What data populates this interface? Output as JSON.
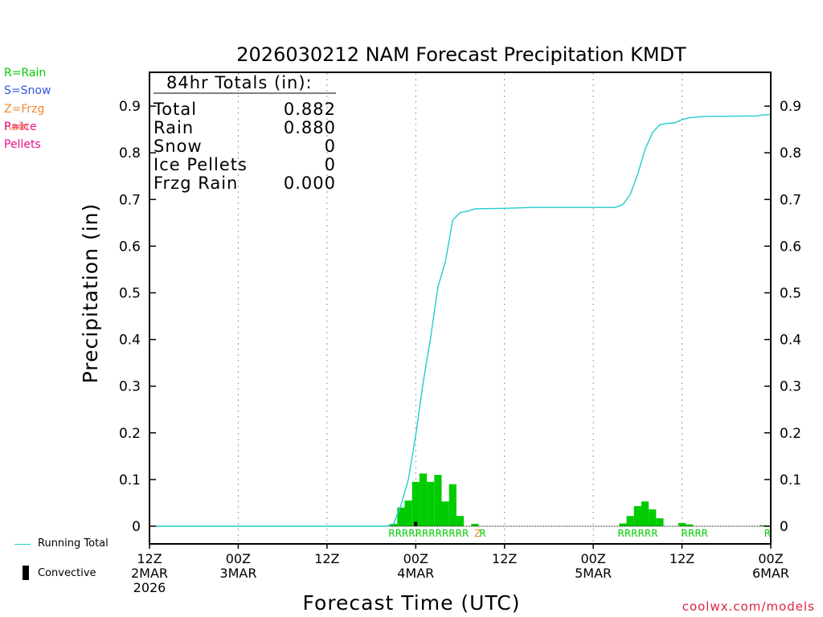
{
  "colors": {
    "rain": "#00cc00",
    "snow": "#3355dd",
    "frzg_rain": "#ee8833",
    "ice_pellets": "#ee1188",
    "running_total": "#22cccc",
    "convective": "#000000",
    "credit": "#dd2244",
    "grid": "#999999"
  },
  "type_legend": [
    {
      "label": "R=Rain",
      "color": "#00cc00"
    },
    {
      "label": "S=Snow",
      "color": "#3355dd"
    },
    {
      "label": "Z=Frzg Rain",
      "color": "#ee8833"
    },
    {
      "label": "P=Ice Pellets",
      "color": "#ee1188"
    }
  ],
  "bottom_legend": {
    "running_total": "Running Total",
    "convective": "Convective"
  },
  "credit": "coolwx.com/models",
  "chart_data": {
    "type": "bar",
    "title": "2026030212 NAM Forecast Precipitation KMDT",
    "xlabel": "Forecast Time (UTC)",
    "ylabel": "Precipitation (in)",
    "ylim": [
      0,
      0.98
    ],
    "xlim_hours": [
      0,
      84
    ],
    "bar_width_hours": 1,
    "y_ticks": [
      "0",
      "0.1",
      "0.2",
      "0.3",
      "0.4",
      "0.5",
      "0.6",
      "0.7",
      "0.8",
      "0.9"
    ],
    "y_tick_values": [
      0,
      0.1,
      0.2,
      0.3,
      0.4,
      0.5,
      0.6,
      0.7,
      0.8,
      0.9
    ],
    "x_ticks": [
      {
        "hour": 0,
        "lines": [
          "12Z",
          "2MAR",
          "2026"
        ]
      },
      {
        "hour": 12,
        "lines": [
          "00Z",
          "3MAR"
        ]
      },
      {
        "hour": 24,
        "lines": [
          "12Z"
        ]
      },
      {
        "hour": 36,
        "lines": [
          "00Z",
          "4MAR"
        ]
      },
      {
        "hour": 48,
        "lines": [
          "12Z"
        ]
      },
      {
        "hour": 60,
        "lines": [
          "00Z",
          "5MAR"
        ]
      },
      {
        "hour": 72,
        "lines": [
          "12Z"
        ]
      },
      {
        "hour": 84,
        "lines": [
          "00Z",
          "6MAR"
        ]
      }
    ],
    "grid_hours": [
      12,
      24,
      36,
      48,
      60,
      72
    ],
    "totals_box": {
      "header": "84hr Totals (in):",
      "rows": [
        {
          "label": "Total",
          "value": "0.882"
        },
        {
          "label": "Rain",
          "value": "0.880"
        },
        {
          "label": "Snow",
          "value": "0"
        },
        {
          "label": "Ice Pellets",
          "value": "0"
        },
        {
          "label": "Frzg Rain",
          "value": "0.000"
        }
      ]
    },
    "series": [
      {
        "name": "Hourly Precipitation",
        "kind": "bar",
        "points": [
          {
            "hour": 33,
            "value": 0.005
          },
          {
            "hour": 34,
            "value": 0.04
          },
          {
            "hour": 35,
            "value": 0.055
          },
          {
            "hour": 36,
            "value": 0.095
          },
          {
            "hour": 37,
            "value": 0.113
          },
          {
            "hour": 38,
            "value": 0.095
          },
          {
            "hour": 39,
            "value": 0.11
          },
          {
            "hour": 40,
            "value": 0.053
          },
          {
            "hour": 41,
            "value": 0.09
          },
          {
            "hour": 42,
            "value": 0.022
          },
          {
            "hour": 44,
            "value": 0.005
          },
          {
            "hour": 64,
            "value": 0.006
          },
          {
            "hour": 65,
            "value": 0.022
          },
          {
            "hour": 66,
            "value": 0.043
          },
          {
            "hour": 67,
            "value": 0.053
          },
          {
            "hour": 68,
            "value": 0.036
          },
          {
            "hour": 69,
            "value": 0.017
          },
          {
            "hour": 72,
            "value": 0.007
          },
          {
            "hour": 73,
            "value": 0.004
          },
          {
            "hour": 83,
            "value": 0.002
          }
        ]
      },
      {
        "name": "Convective",
        "kind": "bar",
        "points": [
          {
            "hour": 36,
            "value": 0.008
          }
        ]
      },
      {
        "name": "Running Total",
        "kind": "line",
        "points": [
          {
            "hour": 0,
            "value": 0
          },
          {
            "hour": 32,
            "value": 0
          },
          {
            "hour": 33,
            "value": 0.005
          },
          {
            "hour": 34,
            "value": 0.045
          },
          {
            "hour": 35,
            "value": 0.1
          },
          {
            "hour": 36,
            "value": 0.195
          },
          {
            "hour": 37,
            "value": 0.308
          },
          {
            "hour": 38,
            "value": 0.403
          },
          {
            "hour": 39,
            "value": 0.513
          },
          {
            "hour": 40,
            "value": 0.566
          },
          {
            "hour": 41,
            "value": 0.656
          },
          {
            "hour": 42,
            "value": 0.672
          },
          {
            "hour": 43,
            "value": 0.675
          },
          {
            "hour": 44,
            "value": 0.68
          },
          {
            "hour": 48,
            "value": 0.681
          },
          {
            "hour": 52,
            "value": 0.683
          },
          {
            "hour": 63,
            "value": 0.683
          },
          {
            "hour": 64,
            "value": 0.689
          },
          {
            "hour": 65,
            "value": 0.711
          },
          {
            "hour": 66,
            "value": 0.754
          },
          {
            "hour": 67,
            "value": 0.807
          },
          {
            "hour": 68,
            "value": 0.843
          },
          {
            "hour": 69,
            "value": 0.86
          },
          {
            "hour": 70,
            "value": 0.863
          },
          {
            "hour": 71,
            "value": 0.864
          },
          {
            "hour": 72,
            "value": 0.871
          },
          {
            "hour": 73,
            "value": 0.875
          },
          {
            "hour": 75,
            "value": 0.878
          },
          {
            "hour": 82,
            "value": 0.879
          },
          {
            "hour": 83,
            "value": 0.881
          },
          {
            "hour": 84,
            "value": 0.882
          }
        ]
      }
    ],
    "type_annotations": [
      {
        "start_hour": 32.3,
        "text": "RRRRRRRRRRRR",
        "color": "#00cc00"
      },
      {
        "start_hour": 43.9,
        "text": "Z",
        "color": "#ee8833"
      },
      {
        "start_hour": 44.6,
        "text": "R",
        "color": "#00cc00"
      },
      {
        "start_hour": 63.3,
        "text": "RRRRRR",
        "color": "#00cc00"
      },
      {
        "start_hour": 71.9,
        "text": "RRRR",
        "color": "#00cc00"
      },
      {
        "start_hour": 83.1,
        "text": "R",
        "color": "#00cc00"
      }
    ]
  }
}
